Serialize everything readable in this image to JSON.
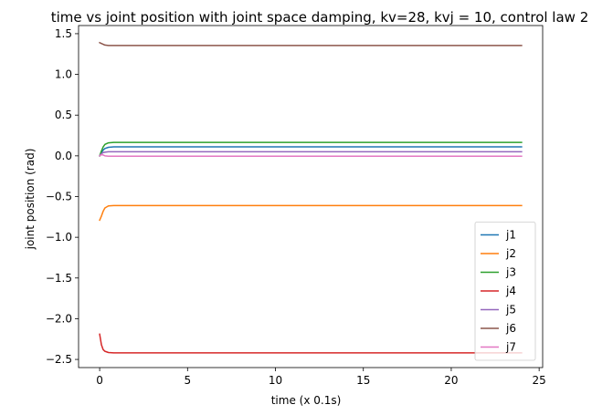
{
  "chart_data": {
    "type": "line",
    "title": "time vs joint position with joint space damping, kv=28, kvj = 10, control law 2",
    "xlabel": "time (x 0.1s)",
    "ylabel": "joint position (rad)",
    "xlim": [
      -1.2,
      25.2
    ],
    "ylim": [
      -2.6,
      1.6
    ],
    "xticks": [
      0,
      5,
      10,
      15,
      20,
      25
    ],
    "xtick_labels": [
      "0",
      "5",
      "10",
      "15",
      "20",
      "25"
    ],
    "yticks": [
      -2.5,
      -2.0,
      -1.5,
      -1.0,
      -0.5,
      0.0,
      0.5,
      1.0,
      1.5
    ],
    "ytick_labels": [
      "−2.5",
      "−2.0",
      "−1.5",
      "−1.0",
      "−0.5",
      "0.0",
      "0.5",
      "1.0",
      "1.5"
    ],
    "grid": false,
    "legend_position": "lower-right",
    "series": [
      {
        "name": "j1",
        "color": "#1f77b4",
        "x": [
          0,
          0.1,
          0.2,
          0.3,
          0.5,
          0.8,
          1.2,
          24
        ],
        "y": [
          0.0,
          0.04,
          0.07,
          0.09,
          0.105,
          0.11,
          0.11,
          0.11
        ]
      },
      {
        "name": "j2",
        "color": "#ff7f0e",
        "x": [
          0,
          0.1,
          0.2,
          0.3,
          0.5,
          0.8,
          1.2,
          24
        ],
        "y": [
          -0.79,
          -0.74,
          -0.68,
          -0.64,
          -0.615,
          -0.61,
          -0.61,
          -0.61
        ]
      },
      {
        "name": "j3",
        "color": "#2ca02c",
        "x": [
          0,
          0.1,
          0.2,
          0.3,
          0.5,
          0.8,
          1.2,
          24
        ],
        "y": [
          0.0,
          0.06,
          0.11,
          0.14,
          0.16,
          0.165,
          0.165,
          0.165
        ]
      },
      {
        "name": "j4",
        "color": "#d62728",
        "x": [
          0,
          0.1,
          0.2,
          0.3,
          0.5,
          0.8,
          1.2,
          24
        ],
        "y": [
          -2.19,
          -2.32,
          -2.38,
          -2.4,
          -2.415,
          -2.42,
          -2.42,
          -2.42
        ]
      },
      {
        "name": "j5",
        "color": "#9467bd",
        "x": [
          0,
          0.1,
          0.2,
          0.3,
          0.5,
          0.8,
          1.2,
          24
        ],
        "y": [
          0.0,
          0.025,
          0.04,
          0.045,
          0.05,
          0.05,
          0.05,
          0.05
        ]
      },
      {
        "name": "j6",
        "color": "#8c564b",
        "x": [
          0,
          0.1,
          0.2,
          0.3,
          0.5,
          0.8,
          1.2,
          24
        ],
        "y": [
          1.39,
          1.38,
          1.37,
          1.36,
          1.355,
          1.355,
          1.355,
          1.355
        ]
      },
      {
        "name": "j7",
        "color": "#e377c2",
        "x": [
          0,
          0.1,
          0.2,
          0.3,
          0.5,
          0.8,
          1.2,
          24
        ],
        "y": [
          0.0,
          0.015,
          0.01,
          0.0,
          -0.005,
          -0.005,
          -0.005,
          -0.005
        ]
      }
    ]
  }
}
